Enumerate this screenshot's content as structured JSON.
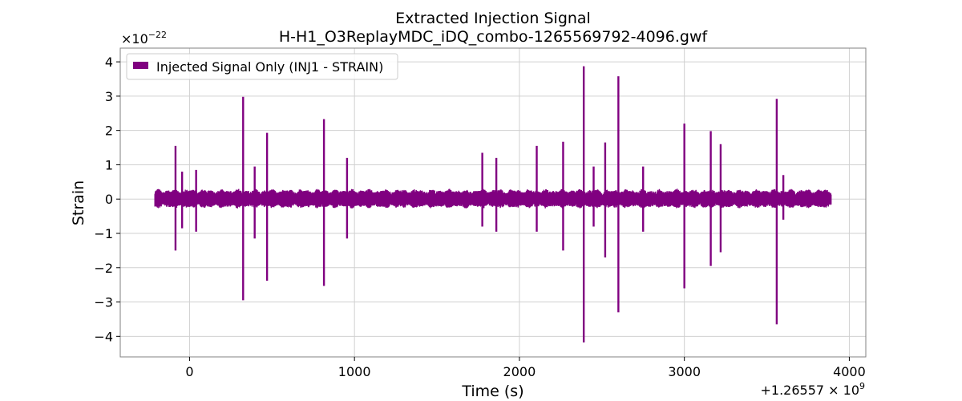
{
  "chart_data": {
    "type": "line",
    "title": "Extracted Injection Signal",
    "subtitle": "H-H1_O3ReplayMDC_iDQ_combo-1265569792-4096.gwf",
    "xlabel": "Time (s)",
    "ylabel": "Strain",
    "x_offset_label": "+1.26557 × 10",
    "x_offset_exponent": "9",
    "y_multiplier_label": "×10",
    "y_multiplier_exponent": "−22",
    "xlim": [
      -420,
      4100
    ],
    "ylim": [
      -4.6,
      4.4
    ],
    "xticks": [
      0,
      1000,
      2000,
      3000,
      4000
    ],
    "xtick_labels": [
      "0",
      "1000",
      "2000",
      "3000",
      "4000"
    ],
    "yticks": [
      -4,
      -3,
      -2,
      -1,
      0,
      1,
      2,
      3,
      4
    ],
    "ytick_labels": [
      "−4",
      "−3",
      "−2",
      "−1",
      "0",
      "1",
      "2",
      "3",
      "4"
    ],
    "grid": true,
    "legend_position": "top-left",
    "series": [
      {
        "name": "Injected Signal Only (INJ1 - STRAIN)",
        "color": "#800080",
        "x_range": [
          -210,
          3890
        ],
        "band": [
          0.15,
          -0.13
        ],
        "spikes": [
          {
            "t": -85,
            "top": 1.55,
            "bottom": -1.5
          },
          {
            "t": -45,
            "top": 0.8,
            "bottom": -0.85
          },
          {
            "t": 40,
            "top": 0.85,
            "bottom": -0.95
          },
          {
            "t": 325,
            "top": 2.98,
            "bottom": -2.95
          },
          {
            "t": 395,
            "top": 0.95,
            "bottom": -1.15
          },
          {
            "t": 470,
            "top": 1.93,
            "bottom": -2.38
          },
          {
            "t": 815,
            "top": 2.33,
            "bottom": -2.53
          },
          {
            "t": 955,
            "top": 1.2,
            "bottom": -1.15
          },
          {
            "t": 1775,
            "top": 1.35,
            "bottom": -0.8
          },
          {
            "t": 1860,
            "top": 1.2,
            "bottom": -0.95
          },
          {
            "t": 2105,
            "top": 1.55,
            "bottom": -0.95
          },
          {
            "t": 2265,
            "top": 1.67,
            "bottom": -1.5
          },
          {
            "t": 2390,
            "top": 3.87,
            "bottom": -4.18
          },
          {
            "t": 2450,
            "top": 0.95,
            "bottom": -0.8
          },
          {
            "t": 2520,
            "top": 1.65,
            "bottom": -1.7
          },
          {
            "t": 2600,
            "top": 3.58,
            "bottom": -3.3
          },
          {
            "t": 2750,
            "top": 0.95,
            "bottom": -0.95
          },
          {
            "t": 3000,
            "top": 2.2,
            "bottom": -2.6
          },
          {
            "t": 3160,
            "top": 1.98,
            "bottom": -1.95
          },
          {
            "t": 3220,
            "top": 1.6,
            "bottom": -1.55
          },
          {
            "t": 3560,
            "top": 2.92,
            "bottom": -3.65
          },
          {
            "t": 3600,
            "top": 0.7,
            "bottom": -0.6
          }
        ]
      }
    ]
  }
}
